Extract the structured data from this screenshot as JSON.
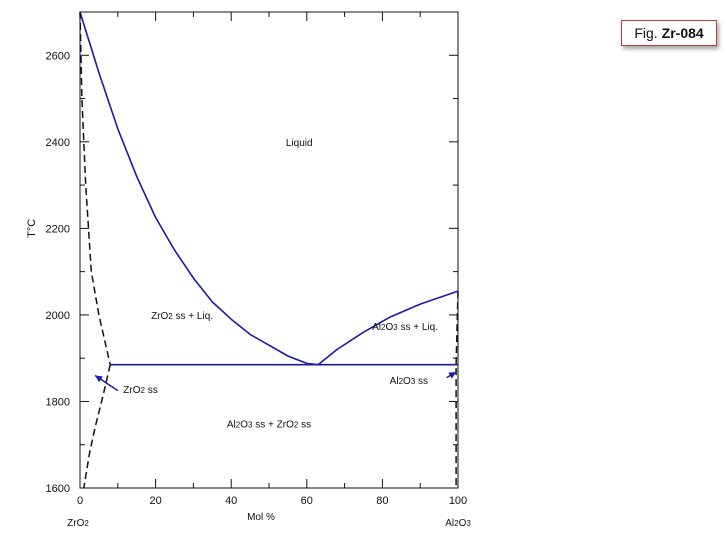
{
  "figure_label": {
    "prefix": "Fig.",
    "code": "Zr-084"
  },
  "chart_data": {
    "type": "line",
    "title": "",
    "xlabel": "Mol %",
    "ylabel": "T°C",
    "xlim": [
      0,
      100
    ],
    "ylim": [
      1600,
      2700
    ],
    "x_ticks": [
      0,
      20,
      40,
      60,
      80,
      100
    ],
    "y_ticks": [
      1600,
      1800,
      2000,
      2200,
      2400,
      2600
    ],
    "endpoints": {
      "left": "ZrO2",
      "right": "Al2O3"
    },
    "series": [
      {
        "style": "solid",
        "color": "#1a1aa6",
        "points": [
          [
            0,
            2700
          ],
          [
            5,
            2560
          ],
          [
            10,
            2430
          ],
          [
            15,
            2320
          ],
          [
            20,
            2225
          ],
          [
            25,
            2150
          ],
          [
            30,
            2085
          ],
          [
            35,
            2030
          ],
          [
            40,
            1990
          ],
          [
            45,
            1955
          ],
          [
            50,
            1930
          ],
          [
            55,
            1905
          ],
          [
            60,
            1888
          ],
          [
            63,
            1885
          ]
        ]
      },
      {
        "style": "solid",
        "color": "#1a1aa6",
        "points": [
          [
            63,
            1885
          ],
          [
            68,
            1920
          ],
          [
            75,
            1960
          ],
          [
            82,
            1995
          ],
          [
            90,
            2025
          ],
          [
            95,
            2040
          ],
          [
            100,
            2055
          ]
        ]
      },
      {
        "style": "solid",
        "color": "#1a1aa6",
        "points": [
          [
            8,
            1885
          ],
          [
            100,
            1885
          ]
        ]
      },
      {
        "style": "dashed",
        "color": "#111111",
        "points": [
          [
            0,
            2700
          ],
          [
            0.5,
            2500
          ],
          [
            1.5,
            2300
          ],
          [
            3,
            2100
          ],
          [
            5,
            2000
          ],
          [
            8,
            1885
          ]
        ]
      },
      {
        "style": "dashed",
        "color": "#111111",
        "points": [
          [
            8,
            1885
          ],
          [
            6,
            1810
          ],
          [
            4,
            1740
          ],
          [
            2.5,
            1680
          ],
          [
            1,
            1600
          ]
        ]
      },
      {
        "style": "dashed",
        "color": "#111111",
        "points": [
          [
            100,
            2055
          ],
          [
            99.5,
            1885
          ],
          [
            99.5,
            1600
          ]
        ]
      }
    ],
    "annotations": [
      {
        "text": "Liquid",
        "x": 58,
        "y": 2390
      },
      {
        "text": "ZrO2 ss + Liq.",
        "x": 27,
        "y": 1990
      },
      {
        "text": "Al2O3 ss + Liq.",
        "x": 86,
        "y": 1965
      },
      {
        "text": "ZrO2 ss",
        "x": 16,
        "y": 1820
      },
      {
        "text": "Al2O3 ss",
        "x": 87,
        "y": 1840
      },
      {
        "text": "Al2O3 ss + ZrO2 ss",
        "x": 50,
        "y": 1740
      }
    ],
    "arrows": [
      {
        "from": [
          10,
          1825
        ],
        "to": [
          4,
          1860
        ]
      },
      {
        "from": [
          97,
          1855
        ],
        "to": [
          99.5,
          1868
        ]
      }
    ],
    "grid": false
  }
}
